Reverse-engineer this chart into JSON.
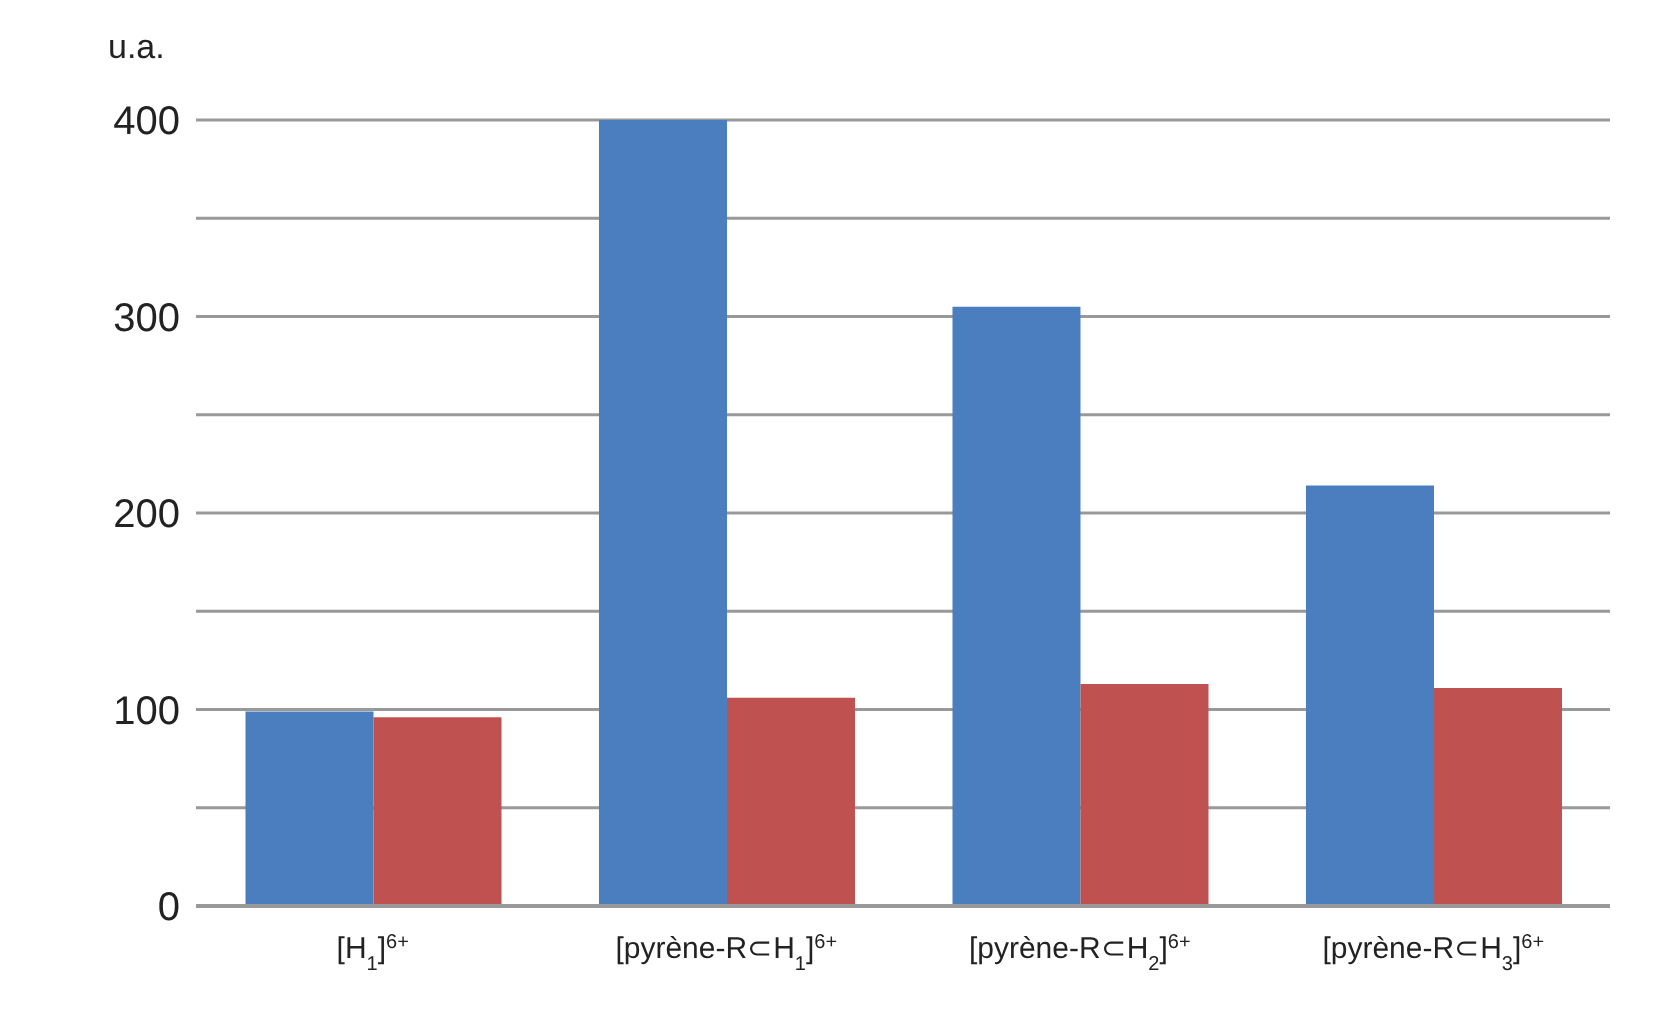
{
  "chart_data": {
    "type": "bar",
    "ylabel": "u.a.",
    "categories": [
      "[H$_{1}$]$^{6+}$",
      "[pyrène-R⊂H$_{1}$]$^{6+}$",
      "[pyrène-R⊂H$_{2}$]$^{6+}$",
      "[pyrène-R⊂H$_{3}$]$^{6+}$"
    ],
    "series": [
      {
        "color": "#4a7ebf",
        "values": [
          99,
          400,
          305,
          214
        ]
      },
      {
        "color": "#bf5150",
        "values": [
          96,
          106,
          113,
          111
        ]
      }
    ],
    "ylim": [
      0,
      400
    ],
    "yticks": [
      0,
      {
        "value": 50,
        "label": null
      },
      100,
      {
        "value": 150,
        "label": null
      },
      200,
      {
        "value": 250,
        "label": null
      },
      300,
      {
        "value": 350,
        "label": null
      },
      400
    ],
    "grid": "y"
  }
}
